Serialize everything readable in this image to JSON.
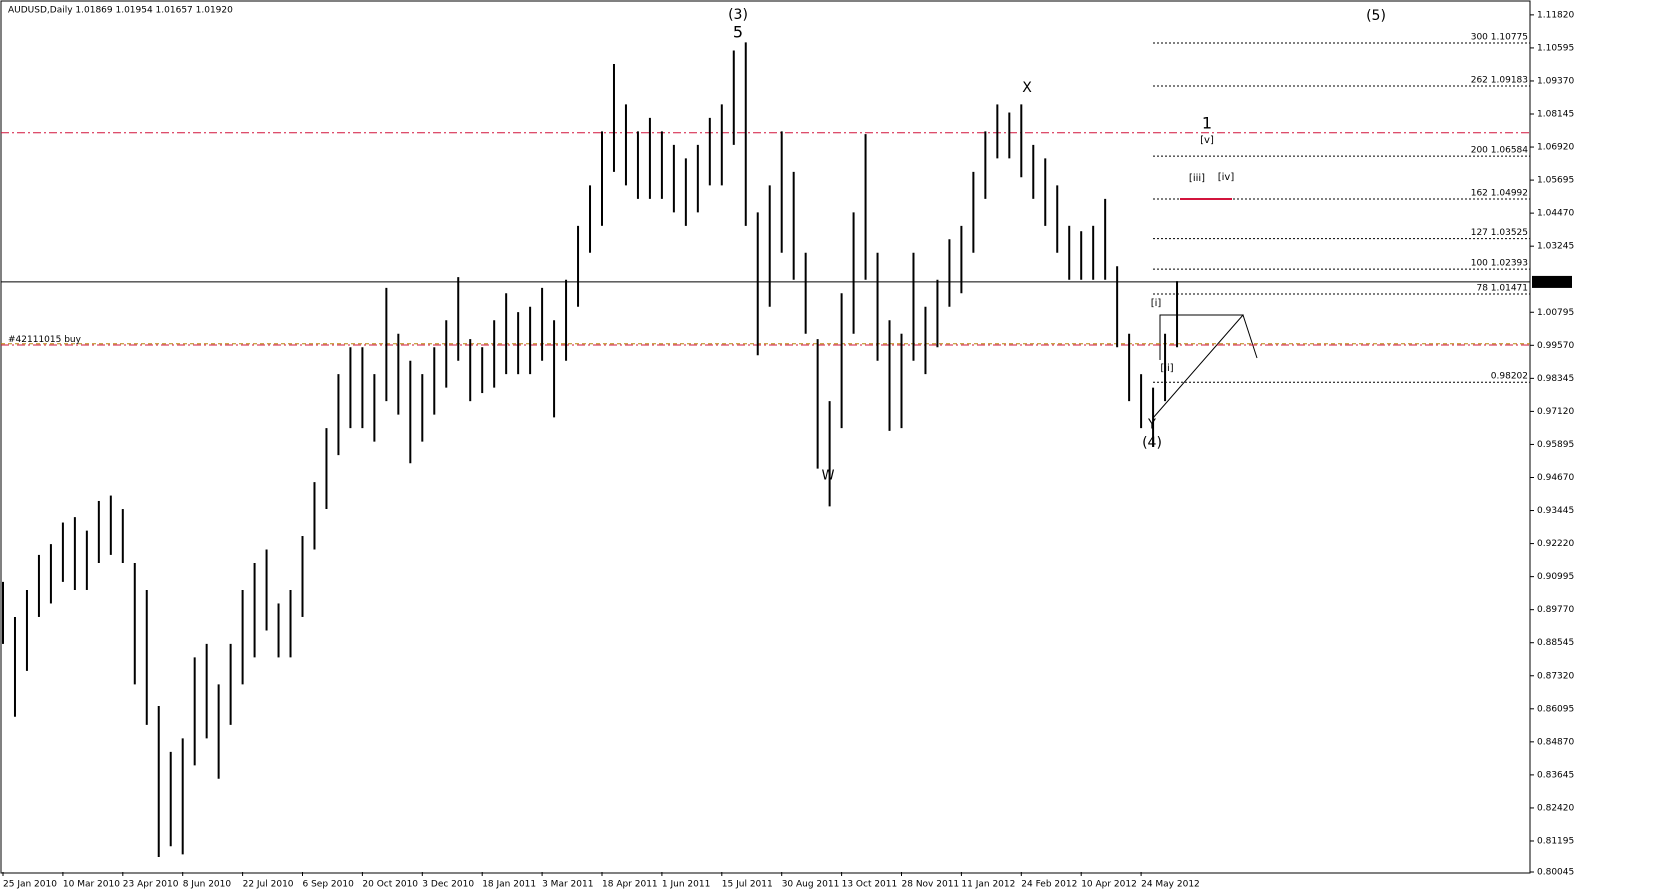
{
  "chart_data": {
    "type": "hilo",
    "title": "AUDUSD,Daily  1.01869 1.01954 1.01657 1.01920",
    "color": "#000000",
    "categories": [
      "25 Jan 2010",
      null,
      null,
      null,
      null,
      "10 Mar 2010",
      null,
      null,
      null,
      null,
      "23 Apr 2010",
      null,
      null,
      null,
      null,
      "8 Jun 2010",
      null,
      null,
      null,
      null,
      "22 Jul 2010",
      null,
      null,
      null,
      null,
      "6 Sep 2010",
      null,
      null,
      null,
      null,
      "20 Oct 2010",
      null,
      null,
      null,
      null,
      "3 Dec 2010",
      null,
      null,
      null,
      null,
      "18 Jan 2011",
      null,
      null,
      null,
      null,
      "3 Mar 2011",
      null,
      null,
      null,
      null,
      "18 Apr 2011",
      null,
      null,
      null,
      null,
      "1 Jun 2011",
      null,
      null,
      null,
      null,
      "15 Jul 2011",
      null,
      null,
      null,
      null,
      "30 Aug 2011",
      null,
      null,
      null,
      null,
      "13 Oct 2011",
      null,
      null,
      null,
      null,
      "28 Nov 2011",
      null,
      null,
      null,
      null,
      "11 Jan 2012",
      null,
      null,
      null,
      null,
      "24 Feb 2012",
      null,
      null,
      null,
      null,
      "10 Apr 2012",
      null,
      null,
      null,
      null,
      "24 May 2012",
      null,
      null,
      null
    ],
    "high": [
      0.908,
      0.895,
      0.905,
      0.918,
      0.922,
      0.93,
      0.932,
      0.927,
      0.938,
      0.94,
      0.935,
      0.915,
      0.905,
      0.862,
      0.845,
      0.85,
      0.88,
      0.885,
      0.87,
      0.885,
      0.905,
      0.915,
      0.92,
      0.9,
      0.905,
      0.925,
      0.945,
      0.965,
      0.985,
      0.995,
      0.995,
      0.985,
      1.017,
      1.0,
      0.99,
      0.985,
      0.995,
      1.005,
      1.021,
      0.998,
      0.995,
      1.005,
      1.015,
      1.008,
      1.01,
      1.017,
      1.005,
      1.02,
      1.04,
      1.055,
      1.075,
      1.1,
      1.085,
      1.075,
      1.08,
      1.075,
      1.07,
      1.065,
      1.07,
      1.08,
      1.085,
      1.105,
      1.108,
      1.045,
      1.055,
      1.075,
      1.06,
      1.03,
      0.998,
      0.975,
      1.015,
      1.045,
      1.074,
      1.03,
      1.005,
      1.0,
      1.03,
      1.01,
      1.02,
      1.035,
      1.04,
      1.06,
      1.075,
      1.085,
      1.082,
      1.085,
      1.07,
      1.065,
      1.055,
      1.04,
      1.038,
      1.04,
      1.05,
      1.025,
      1.0,
      0.985,
      0.98,
      1.0,
      1.0195
    ],
    "low": [
      0.885,
      0.858,
      0.875,
      0.895,
      0.9,
      0.908,
      0.905,
      0.905,
      0.915,
      0.918,
      0.915,
      0.87,
      0.855,
      0.806,
      0.81,
      0.807,
      0.84,
      0.85,
      0.835,
      0.855,
      0.87,
      0.88,
      0.89,
      0.88,
      0.88,
      0.895,
      0.92,
      0.935,
      0.955,
      0.965,
      0.965,
      0.96,
      0.975,
      0.97,
      0.952,
      0.96,
      0.97,
      0.98,
      0.99,
      0.975,
      0.978,
      0.98,
      0.985,
      0.985,
      0.985,
      0.99,
      0.969,
      0.99,
      1.01,
      1.03,
      1.04,
      1.06,
      1.055,
      1.05,
      1.05,
      1.05,
      1.045,
      1.04,
      1.045,
      1.055,
      1.055,
      1.07,
      1.04,
      0.992,
      1.01,
      1.03,
      1.02,
      1.0,
      0.95,
      0.936,
      0.965,
      1.0,
      1.02,
      0.99,
      0.964,
      0.965,
      0.99,
      0.985,
      0.995,
      1.01,
      1.015,
      1.03,
      1.05,
      1.065,
      1.065,
      1.058,
      1.05,
      1.04,
      1.03,
      1.02,
      1.02,
      1.02,
      1.02,
      0.995,
      0.975,
      0.965,
      0.958,
      0.975,
      0.995
    ],
    "ylim": [
      0.80045,
      1.1226
    ],
    "yticks": [
      {
        "value": 1.1182,
        "label": "1.11820"
      },
      {
        "value": 1.10595,
        "label": "1.10595"
      },
      {
        "value": 1.0937,
        "label": "1.09370"
      },
      {
        "value": 1.08145,
        "label": "1.08145"
      },
      {
        "value": 1.0692,
        "label": "1.06920"
      },
      {
        "value": 1.05695,
        "label": "1.05695"
      },
      {
        "value": 1.0447,
        "label": "1.04470"
      },
      {
        "value": 1.03245,
        "label": "1.03245"
      },
      {
        "value": 1.00795,
        "label": "1.00795"
      },
      {
        "value": 0.9957,
        "label": "0.99570"
      },
      {
        "value": 0.98345,
        "label": "0.98345"
      },
      {
        "value": 0.9712,
        "label": "0.97120"
      },
      {
        "value": 0.95895,
        "label": "0.95895"
      },
      {
        "value": 0.9467,
        "label": "0.94670"
      },
      {
        "value": 0.93445,
        "label": "0.93445"
      },
      {
        "value": 0.9222,
        "label": "0.92220"
      },
      {
        "value": 0.90995,
        "label": "0.90995"
      },
      {
        "value": 0.8977,
        "label": "0.89770"
      },
      {
        "value": 0.88545,
        "label": "0.88545"
      },
      {
        "value": 0.8732,
        "label": "0.87320"
      },
      {
        "value": 0.86095,
        "label": "0.86095"
      },
      {
        "value": 0.8487,
        "label": "0.84870"
      },
      {
        "value": 0.83645,
        "label": "0.83645"
      },
      {
        "value": 0.8242,
        "label": "0.82420"
      },
      {
        "value": 0.81195,
        "label": "0.81195"
      },
      {
        "value": 0.80045,
        "label": "0.80045"
      }
    ],
    "price_line": {
      "value": 1.0192,
      "label": "1.01920"
    },
    "order_line": {
      "value": 0.9963,
      "label": "#42111015 buy"
    },
    "red_lines": [
      1.0745,
      0.9958
    ],
    "fib_levels": [
      {
        "value": 1.10775,
        "label": "300 1.10775"
      },
      {
        "value": 1.09183,
        "label": "262 1.09183"
      },
      {
        "value": 1.06584,
        "label": "200 1.06584"
      },
      {
        "value": 1.04992,
        "label": "162 1.04992"
      },
      {
        "value": 1.03525,
        "label": "127 1.03525"
      },
      {
        "value": 1.02393,
        "label": "100 1.02393"
      },
      {
        "value": 1.01471,
        "label": "78 1.01471"
      },
      {
        "value": 0.98202,
        "label": "0.98202"
      }
    ],
    "wave_labels": [
      {
        "text": "(3)",
        "color": "#0000cc"
      },
      {
        "text": "5",
        "color": "#8b0000"
      },
      {
        "text": "X",
        "color": "#8b0000"
      },
      {
        "text": "W",
        "color": "#8b0000"
      },
      {
        "text": "Y",
        "color": "#8b0000"
      },
      {
        "text": "(4)",
        "color": "#0000cc"
      },
      {
        "text": "(5)",
        "color": "#0000cc"
      },
      {
        "text": "1",
        "color": "#8b0000"
      },
      {
        "text": "[v]",
        "color": "#2a9a2a"
      },
      {
        "text": "[iii]",
        "color": "#2a9a2a"
      },
      {
        "text": "[iv]",
        "color": "#2a9a2a"
      },
      {
        "text": "[i]",
        "color": "#2a9a2a"
      },
      {
        "text": "[ii]",
        "color": "#2a9a2a"
      }
    ]
  }
}
